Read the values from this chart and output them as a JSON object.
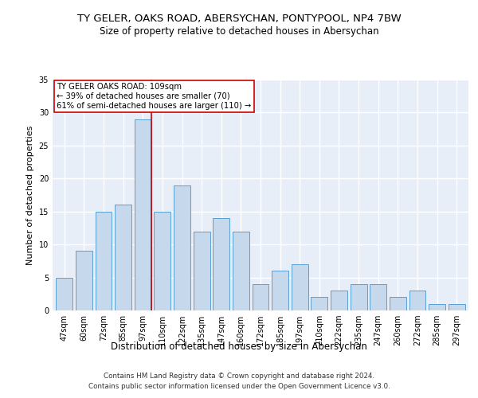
{
  "title": "TY GELER, OAKS ROAD, ABERSYCHAN, PONTYPOOL, NP4 7BW",
  "subtitle": "Size of property relative to detached houses in Abersychan",
  "xlabel": "Distribution of detached houses by size in Abersychan",
  "ylabel": "Number of detached properties",
  "categories": [
    "47sqm",
    "60sqm",
    "72sqm",
    "85sqm",
    "97sqm",
    "110sqm",
    "122sqm",
    "135sqm",
    "147sqm",
    "160sqm",
    "172sqm",
    "185sqm",
    "197sqm",
    "210sqm",
    "222sqm",
    "235sqm",
    "247sqm",
    "260sqm",
    "272sqm",
    "285sqm",
    "297sqm"
  ],
  "values": [
    5,
    9,
    15,
    16,
    29,
    15,
    19,
    12,
    14,
    12,
    4,
    6,
    7,
    2,
    3,
    4,
    4,
    2,
    3,
    1,
    1
  ],
  "bar_color": "#c5d8ec",
  "bar_edge_color": "#5a9fd4",
  "highlight_bar_index": 4,
  "highlight_line_color": "#cc0000",
  "annotation_text": "TY GELER OAKS ROAD: 109sqm\n← 39% of detached houses are smaller (70)\n61% of semi-detached houses are larger (110) →",
  "annotation_box_color": "#ffffff",
  "annotation_box_edge_color": "#cc0000",
  "ylim": [
    0,
    35
  ],
  "yticks": [
    0,
    5,
    10,
    15,
    20,
    25,
    30,
    35
  ],
  "background_color": "#e8eef8",
  "grid_color": "#ffffff",
  "footer_line1": "Contains HM Land Registry data © Crown copyright and database right 2024.",
  "footer_line2": "Contains public sector information licensed under the Open Government Licence v3.0."
}
